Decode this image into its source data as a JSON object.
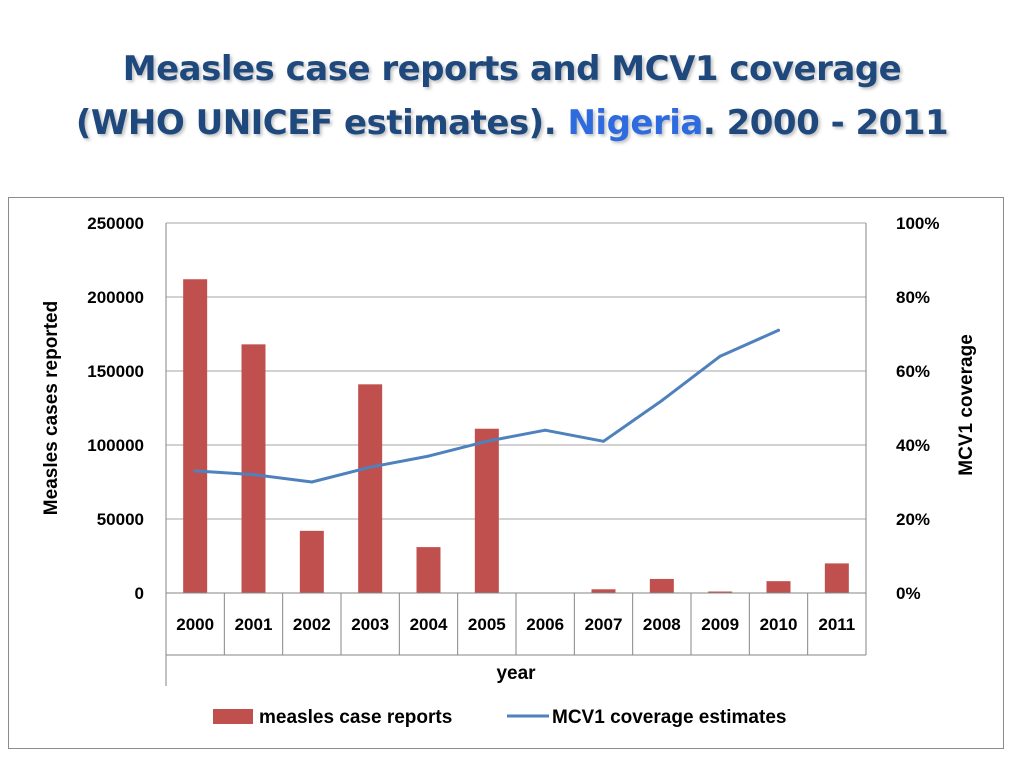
{
  "slide": {
    "title_line1": "Measles case reports and MCV1 coverage",
    "title_line2_pre": "(WHO UNICEF estimates). ",
    "title_highlight": "Nigeria",
    "title_line2_post": ". 2000 - 2011"
  },
  "colors": {
    "bar": "#c0504d",
    "line": "#4f81bd",
    "title": "#1f497d",
    "highlight": "#2e6bdf",
    "grid": "#a6a6a6"
  },
  "chart_data": {
    "type": "bar",
    "categories": [
      "2000",
      "2001",
      "2002",
      "2003",
      "2004",
      "2005",
      "2006",
      "2007",
      "2008",
      "2009",
      "2010",
      "2011"
    ],
    "series": [
      {
        "name": "measles case reports",
        "type": "bar",
        "axis": "left",
        "values": [
          212000,
          168000,
          42000,
          141000,
          31000,
          111000,
          0,
          2500,
          9500,
          1000,
          8000,
          20000
        ]
      },
      {
        "name": "MCV1 coverage estimates",
        "type": "line",
        "axis": "right",
        "values": [
          0.33,
          0.32,
          0.3,
          0.34,
          0.37,
          0.41,
          0.44,
          0.41,
          0.52,
          0.64,
          0.71,
          null
        ]
      }
    ],
    "xlabel": "year",
    "ylabel": "Measles cases reported",
    "y2label": "MCV1 coverage",
    "ylim": [
      0,
      250000
    ],
    "y2lim": [
      0,
      1
    ],
    "yticks": [
      "0",
      "50000",
      "100000",
      "150000",
      "200000",
      "250000"
    ],
    "y2ticks": [
      "0%",
      "20%",
      "40%",
      "60%",
      "80%",
      "100%"
    ],
    "grid": true,
    "legend": "bottom"
  }
}
